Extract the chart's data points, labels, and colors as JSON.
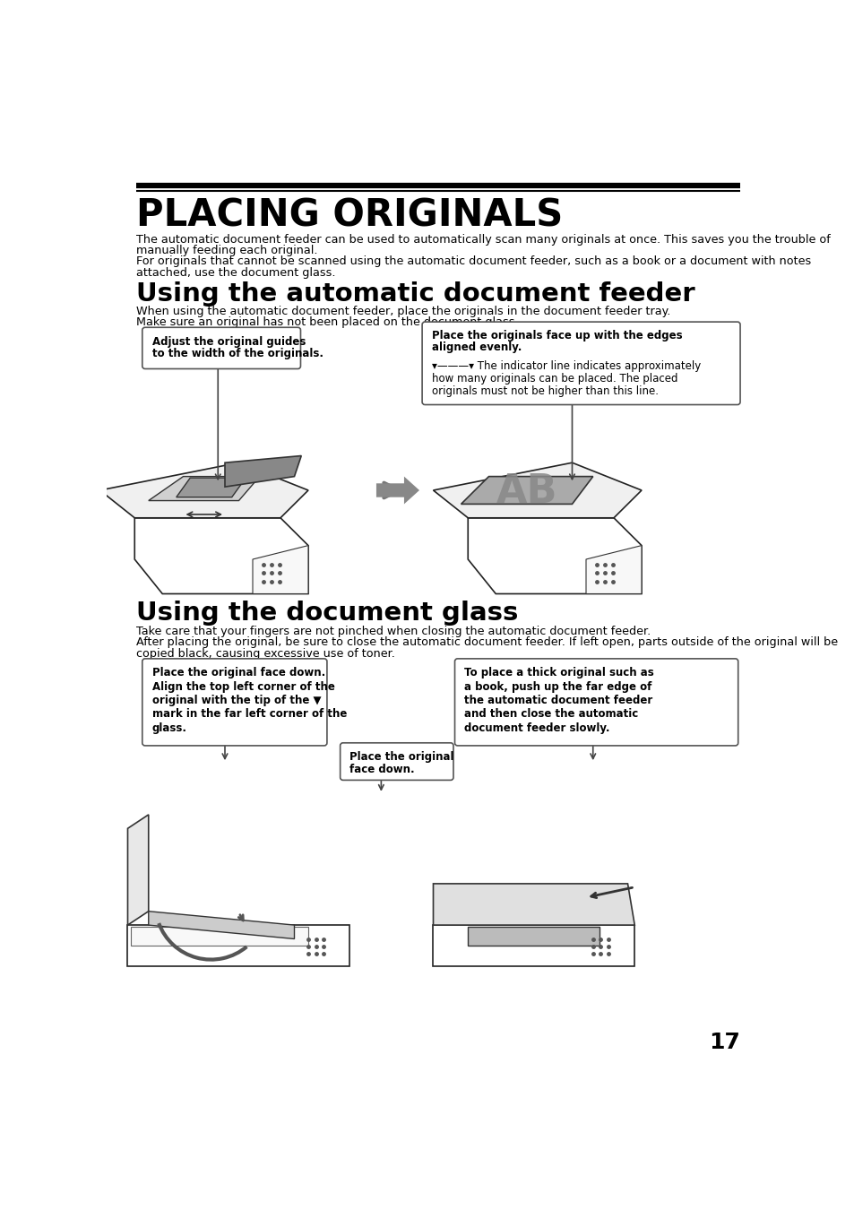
{
  "page_bg": "#ffffff",
  "title": "PLACING ORIGINALS",
  "title_fontsize": 30,
  "body_fontsize": 9.2,
  "section1_fontsize": 21,
  "section2_fontsize": 21,
  "para1_line1": "The automatic document feeder can be used to automatically scan many originals at once. This saves you the trouble of",
  "para1_line2": "manually feeding each original.",
  "para1_line3": "For originals that cannot be scanned using the automatic document feeder, such as a book or a document with notes",
  "para1_line4": "attached, use the document glass.",
  "section1_title": "Using the automatic document feeder",
  "section1_para1": "When using the automatic document feeder, place the originals in the document feeder tray.",
  "section1_para2": "Make sure an original has not been placed on the document glass.",
  "callout1_line1": "Adjust the original guides",
  "callout1_line2": "to the width of the originals.",
  "callout2_line1": "Place the originals face up with the edges",
  "callout2_line2": "aligned evenly.",
  "callout2_line3": "▾———▾ The indicator line indicates approximately",
  "callout2_line4": "how many originals can be placed. The placed",
  "callout2_line5": "originals must not be higher than this line.",
  "section2_title": "Using the document glass",
  "section2_para1": "Take care that your fingers are not pinched when closing the automatic document feeder.",
  "section2_para2": "After placing the original, be sure to close the automatic document feeder. If left open, parts outside of the original will be",
  "section2_para3": "copied black, causing excessive use of toner.",
  "callout3_line1": "Place the original face down.",
  "callout3_line2": "Align the top left corner of the",
  "callout3_line3": "original with the tip of the ▼",
  "callout3_line4": "mark in the far left corner of the",
  "callout3_line5": "glass.",
  "callout4_line1": "Place the original",
  "callout4_line2": "face down.",
  "callout5_line1": "To place a thick original such as",
  "callout5_line2": "a book, push up the far edge of",
  "callout5_line3": "the automatic document feeder",
  "callout5_line4": "and then close the automatic",
  "callout5_line5": "document feeder slowly.",
  "page_number": "17",
  "ml": 0.044,
  "mr": 0.956
}
